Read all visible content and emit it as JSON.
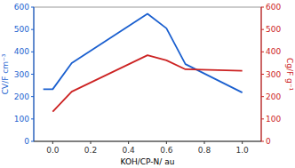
{
  "chart_data": {
    "type": "line",
    "xlabel": "KOH/CP-N/ au",
    "ylabel": "CV/F cm⁻³",
    "y2label": "Cg/F g⁻¹",
    "series": [
      {
        "color": "#1a5fcf",
        "x": [
          -0.05,
          0.0,
          0.1,
          0.5,
          0.6,
          0.7,
          1.0
        ],
        "values": [
          233,
          233,
          350,
          570,
          505,
          345,
          218
        ]
      },
      {
        "color": "#cc2222",
        "axis": "y2",
        "x": [
          0.0,
          0.1,
          0.5,
          0.6,
          0.7,
          1.0
        ],
        "values": [
          133,
          222,
          385,
          362,
          322,
          315
        ]
      }
    ],
    "xlim": [
      -0.1,
      1.1
    ],
    "xticks": [
      {
        "value": 0.0,
        "label": "0.0"
      },
      0.2,
      0.4,
      0.6,
      0.8,
      {
        "value": 1.0,
        "label": "1.0"
      }
    ],
    "ylim": [
      0,
      600
    ],
    "yticks": [
      0,
      100,
      200,
      300,
      400,
      500,
      600
    ],
    "y2lim": [
      0,
      600
    ],
    "y2ticks": [
      0,
      100,
      200,
      300,
      400,
      500,
      600
    ],
    "grid": false
  }
}
